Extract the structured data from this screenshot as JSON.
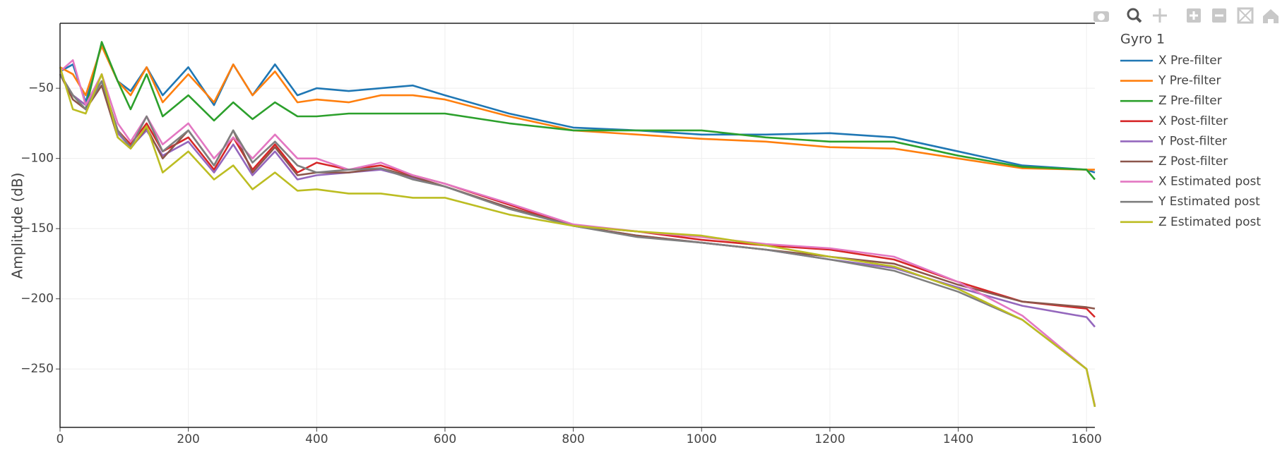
{
  "chart_data": {
    "type": "line",
    "y_label": "Amplitude (dB)",
    "legend_title": "Gyro 1",
    "legend_position": "right",
    "grid": true,
    "xlim": [
      0,
      1613
    ],
    "ylim": [
      -291.6,
      -3.7
    ],
    "xticks": [
      0,
      200,
      400,
      600,
      800,
      1000,
      1200,
      1400,
      1600
    ],
    "yticks": [
      {
        "value": -50,
        "label": "−50"
      },
      {
        "value": -100,
        "label": "−100"
      },
      {
        "value": -150,
        "label": "−150"
      },
      {
        "value": -200,
        "label": "−200"
      },
      {
        "value": -250,
        "label": "−250"
      }
    ],
    "x": [
      0,
      20,
      40,
      65,
      90,
      110,
      135,
      160,
      200,
      240,
      270,
      300,
      335,
      370,
      400,
      450,
      500,
      550,
      600,
      700,
      800,
      900,
      1000,
      1100,
      1200,
      1300,
      1400,
      1500,
      1600,
      1613
    ],
    "series": [
      {
        "name": "X Pre-filter",
        "color": "#1f77b4",
        "values": [
          -38,
          -33,
          -60,
          -18,
          -45,
          -52,
          -35,
          -55,
          -35,
          -62,
          -33,
          -55,
          -33,
          -55,
          -50,
          -52,
          -50,
          -48,
          -55,
          -68,
          -78,
          -80,
          -83,
          -83,
          -82,
          -85,
          -95,
          -105,
          -108,
          -110
        ]
      },
      {
        "name": "Y Pre-filter",
        "color": "#ff7f0e",
        "values": [
          -35,
          -40,
          -55,
          -20,
          -45,
          -55,
          -35,
          -60,
          -40,
          -60,
          -33,
          -55,
          -38,
          -60,
          -58,
          -60,
          -55,
          -55,
          -58,
          -70,
          -80,
          -83,
          -86,
          -88,
          -92,
          -93,
          -100,
          -107,
          -108,
          -108
        ]
      },
      {
        "name": "Z Pre-filter",
        "color": "#2ca02c",
        "values": [
          -40,
          -55,
          -65,
          -17,
          -45,
          -65,
          -40,
          -70,
          -55,
          -73,
          -60,
          -72,
          -60,
          -70,
          -70,
          -68,
          -68,
          -68,
          -68,
          -75,
          -80,
          -80,
          -80,
          -85,
          -88,
          -88,
          -98,
          -106,
          -108,
          -115
        ]
      },
      {
        "name": "X Post-filter",
        "color": "#d62728",
        "values": [
          -40,
          -55,
          -62,
          -45,
          -80,
          -90,
          -75,
          -95,
          -85,
          -108,
          -85,
          -108,
          -90,
          -110,
          -103,
          -108,
          -105,
          -112,
          -118,
          -133,
          -148,
          -152,
          -158,
          -162,
          -165,
          -172,
          -188,
          -202,
          -207,
          -213
        ]
      },
      {
        "name": "Y Post-filter",
        "color": "#9467bd",
        "values": [
          -40,
          -55,
          -62,
          -45,
          -82,
          -92,
          -80,
          -98,
          -88,
          -110,
          -90,
          -112,
          -95,
          -115,
          -112,
          -110,
          -108,
          -114,
          -120,
          -135,
          -148,
          -155,
          -160,
          -165,
          -172,
          -178,
          -192,
          -205,
          -213,
          -220
        ]
      },
      {
        "name": "Z Post-filter",
        "color": "#8c564b",
        "values": [
          -40,
          -58,
          -65,
          -48,
          -85,
          -93,
          -78,
          -100,
          -80,
          -105,
          -80,
          -110,
          -92,
          -112,
          -110,
          -110,
          -107,
          -113,
          -120,
          -135,
          -148,
          -155,
          -160,
          -165,
          -170,
          -175,
          -190,
          -202,
          -206,
          -207
        ]
      },
      {
        "name": "X Estimated post",
        "color": "#e377c2",
        "values": [
          -38,
          -30,
          -62,
          -40,
          -75,
          -88,
          -70,
          -90,
          -75,
          -100,
          -85,
          -100,
          -83,
          -100,
          -100,
          -108,
          -103,
          -112,
          -118,
          -132,
          -147,
          -152,
          -156,
          -161,
          -164,
          -170,
          -188,
          -212,
          -250,
          -276
        ]
      },
      {
        "name": "Y Estimated post",
        "color": "#7f7f7f",
        "values": [
          -40,
          -55,
          -65,
          -45,
          -80,
          -92,
          -70,
          -95,
          -80,
          -105,
          -80,
          -103,
          -88,
          -105,
          -110,
          -108,
          -107,
          -115,
          -120,
          -136,
          -148,
          -156,
          -160,
          -165,
          -172,
          -180,
          -195,
          -215,
          -250,
          -277
        ]
      },
      {
        "name": "Z Estimated post",
        "color": "#bcbd22",
        "values": [
          -35,
          -65,
          -68,
          -40,
          -85,
          -93,
          -77,
          -110,
          -95,
          -115,
          -105,
          -122,
          -110,
          -123,
          -122,
          -125,
          -125,
          -128,
          -128,
          -140,
          -148,
          -152,
          -155,
          -162,
          -170,
          -177,
          -193,
          -215,
          -250,
          -277
        ]
      }
    ]
  }
}
